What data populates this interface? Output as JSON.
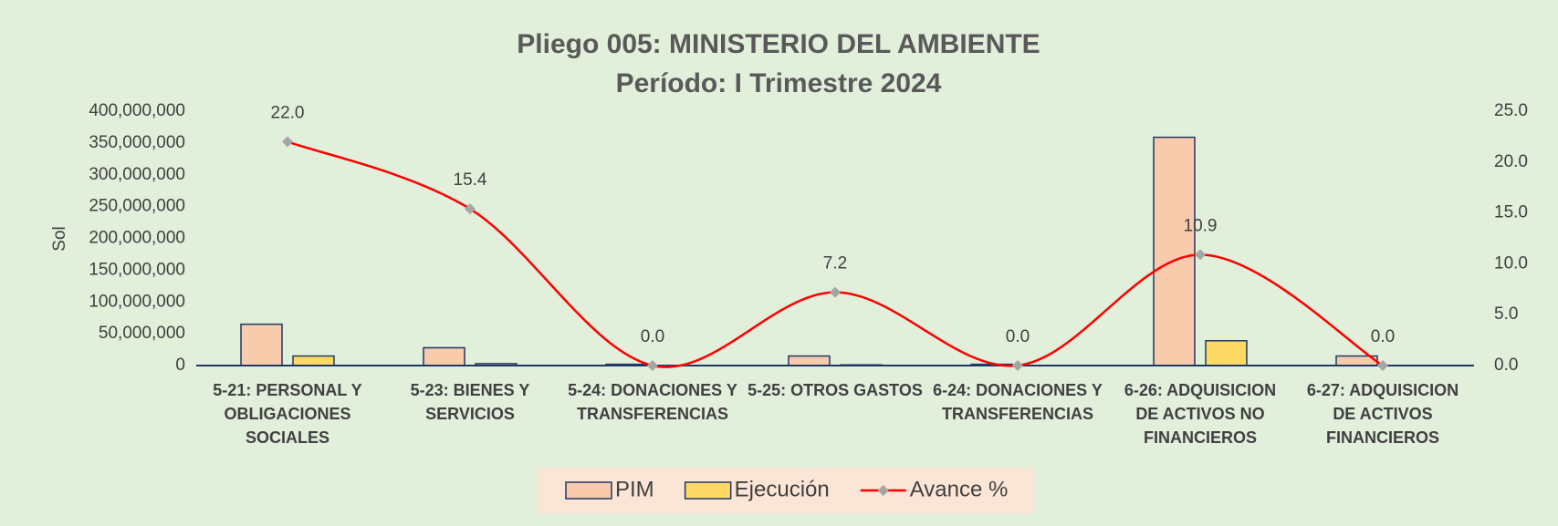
{
  "chart_data": {
    "type": "bar_line",
    "title": "Pliego 005: MINISTERIO DEL AMBIENTE",
    "subtitle": "Período: I Trimestre 2024",
    "y_label": "Sol",
    "categories": [
      "5-21: PERSONAL Y OBLIGACIONES SOCIALES",
      "5-23: BIENES Y SERVICIOS",
      "5-24: DONACIONES Y TRANSFERENCIAS",
      "5-25: OTROS GASTOS",
      "6-24: DONACIONES Y TRANSFERENCIAS",
      "6-26: ADQUISICION DE ACTIVOS NO FINANCIEROS",
      "6-27: ADQUISICION DE ACTIVOS FINANCIEROS"
    ],
    "series": [
      {
        "name": "PIM",
        "type": "bar",
        "color": "#f8cbad",
        "values": [
          65000000,
          28000000,
          2000000,
          15000000,
          2000000,
          359000000,
          15000000
        ]
      },
      {
        "name": "Ejecución",
        "type": "bar",
        "color": "#ffd966",
        "values": [
          15000000,
          3000000,
          0,
          1100000,
          0,
          39000000,
          0
        ]
      },
      {
        "name": "Avance %",
        "type": "line",
        "axis": "y2",
        "color": "#ff0000",
        "values": [
          22.0,
          15.4,
          0.0,
          7.2,
          0.0,
          10.9,
          0.0
        ],
        "value_labels": [
          "22.0",
          "15.4",
          "0.0",
          "7.2",
          "0.0",
          "10.9",
          "0.0"
        ]
      }
    ],
    "ylim": [
      0,
      400000000
    ],
    "yticks": [
      {
        "value": 0,
        "label": "0"
      },
      {
        "value": 50000000,
        "label": "50,000,000"
      },
      {
        "value": 100000000,
        "label": "100,000,000"
      },
      {
        "value": 150000000,
        "label": "150,000,000"
      },
      {
        "value": 200000000,
        "label": "200,000,000"
      },
      {
        "value": 250000000,
        "label": "250,000,000"
      },
      {
        "value": 300000000,
        "label": "300,000,000"
      },
      {
        "value": 350000000,
        "label": "350,000,000"
      },
      {
        "value": 400000000,
        "label": "400,000,000"
      }
    ],
    "y2lim": [
      0,
      25
    ],
    "y2ticks": [
      {
        "value": 0,
        "label": "0.0"
      },
      {
        "value": 5,
        "label": "5.0"
      },
      {
        "value": 10,
        "label": "10.0"
      },
      {
        "value": 15,
        "label": "15.0"
      },
      {
        "value": 20,
        "label": "20.0"
      },
      {
        "value": 25,
        "label": "25.0"
      }
    ],
    "legend": "bottom",
    "grid": false
  }
}
